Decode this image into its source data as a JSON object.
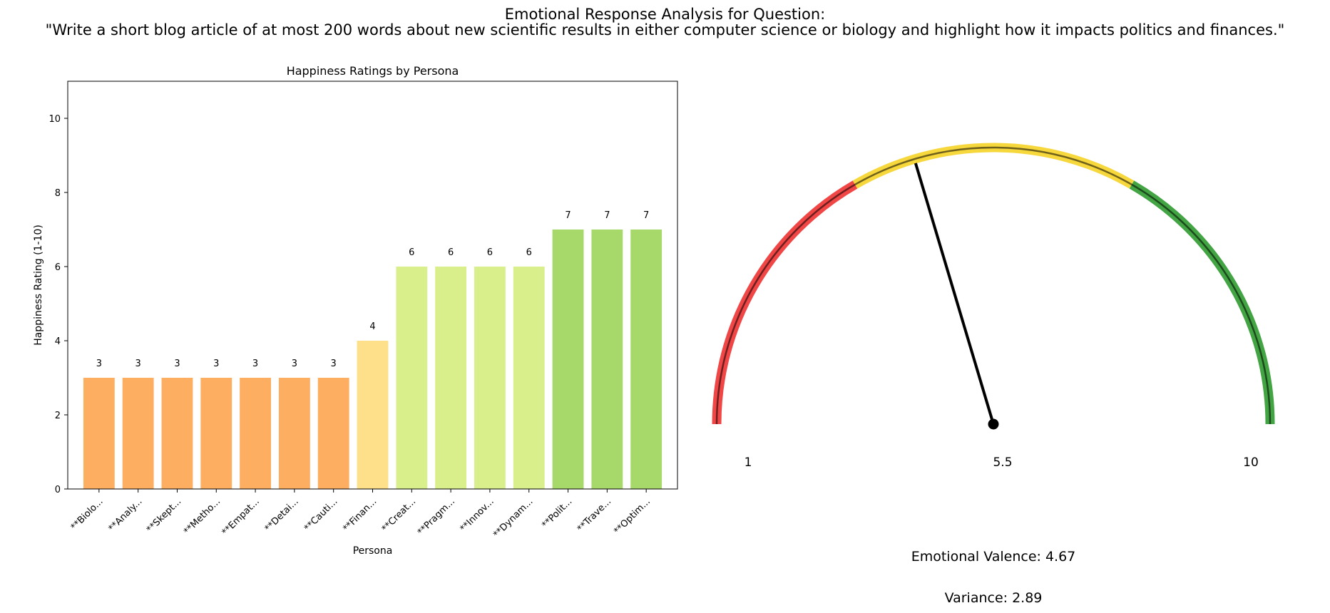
{
  "figure": {
    "title_line1": "Emotional Response Analysis for Question:",
    "title_line2": "\"Write a short blog article of at most 200 words about new scientific results in either computer science or biology and highlight how it impacts politics and finances.\""
  },
  "chart_data": [
    {
      "type": "bar",
      "title": "Happiness Ratings by Persona",
      "xlabel": "Persona",
      "ylabel": "Happiness Rating (1-10)",
      "ylim": [
        0,
        11
      ],
      "yticks": [
        0,
        2,
        4,
        6,
        8,
        10
      ],
      "categories": [
        "**Biolo...",
        "**Analy...",
        "**Skept...",
        "**Metho...",
        "**Empat...",
        "**Detai...",
        "**Cauti...",
        "**Finan...",
        "**Creat...",
        "**Pragm...",
        "**Innov...",
        "**Dynam...",
        "**Polit...",
        "**Trave...",
        "**Optim..."
      ],
      "values": [
        3,
        3,
        3,
        3,
        3,
        3,
        3,
        4,
        6,
        6,
        6,
        6,
        7,
        7,
        7
      ],
      "colors": [
        "#fdae61",
        "#fdae61",
        "#fdae61",
        "#fdae61",
        "#fdae61",
        "#fdae61",
        "#fdae61",
        "#fee08b",
        "#d9ef8b",
        "#d9ef8b",
        "#d9ef8b",
        "#d9ef8b",
        "#a6d96a",
        "#a6d96a",
        "#a6d96a"
      ],
      "grid": false
    },
    {
      "type": "gauge",
      "min": 1,
      "max": 10,
      "tick_labels": [
        "1",
        "5.5",
        "10"
      ],
      "zones": [
        {
          "from": 1,
          "to": 4,
          "color": "#f03232"
        },
        {
          "from": 4,
          "to": 7,
          "color": "#f5d327"
        },
        {
          "from": 7,
          "to": 10,
          "color": "#2e9a2e"
        }
      ],
      "value": 4.67,
      "valence_label": "Emotional Valence: 4.67",
      "variance_label": "Variance: 2.89"
    }
  ]
}
